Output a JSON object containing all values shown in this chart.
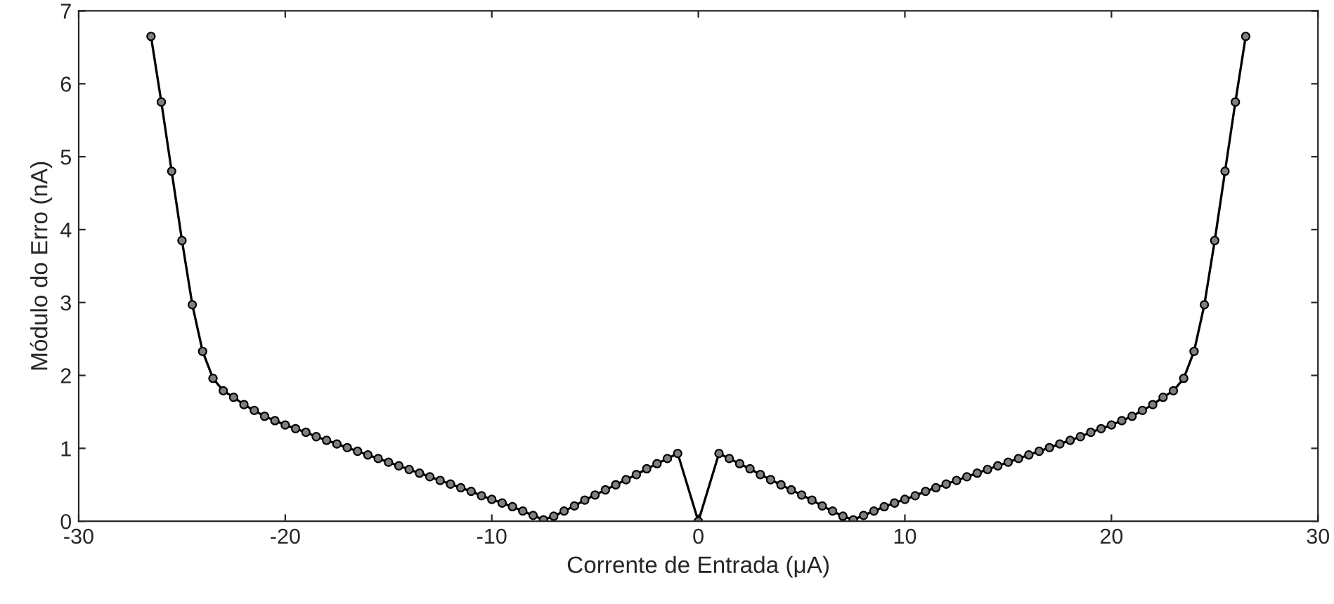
{
  "chart_data": {
    "type": "line",
    "xlabel": "Corrente de Entrada (μA)",
    "ylabel": "Módulo do Erro (nA)",
    "x": [
      -26.5,
      -26,
      -25.5,
      -25,
      -24.5,
      -24,
      -23.5,
      -23,
      -22.5,
      -22,
      -21.5,
      -21,
      -20.5,
      -20,
      -19.5,
      -19,
      -18.5,
      -18,
      -17.5,
      -17,
      -16.5,
      -16,
      -15.5,
      -15,
      -14.5,
      -14,
      -13.5,
      -13,
      -12.5,
      -12,
      -11.5,
      -11,
      -10.5,
      -10,
      -9.5,
      -9,
      -8.5,
      -8,
      -7.5,
      -7,
      -6.5,
      -6,
      -5.5,
      -5,
      -4.5,
      -4,
      -3.5,
      -3,
      -2.5,
      -2,
      -1.5,
      -1,
      0,
      1,
      1.5,
      2,
      2.5,
      3,
      3.5,
      4,
      4.5,
      5,
      5.5,
      6,
      6.5,
      7,
      7.5,
      8,
      8.5,
      9,
      9.5,
      10,
      10.5,
      11,
      11.5,
      12,
      12.5,
      13,
      13.5,
      14,
      14.5,
      15,
      15.5,
      16,
      16.5,
      17,
      17.5,
      18,
      18.5,
      19,
      19.5,
      20,
      20.5,
      21,
      21.5,
      22,
      22.5,
      23,
      23.5,
      24,
      24.5,
      25,
      25.5,
      26,
      26.5
    ],
    "series": [
      {
        "color": "#000000",
        "values": [
          6.65,
          5.75,
          4.8,
          3.85,
          2.97,
          2.33,
          1.96,
          1.79,
          1.7,
          1.6,
          1.52,
          1.44,
          1.38,
          1.32,
          1.27,
          1.22,
          1.16,
          1.11,
          1.06,
          1.01,
          0.96,
          0.91,
          0.86,
          0.81,
          0.76,
          0.71,
          0.66,
          0.61,
          0.56,
          0.51,
          0.46,
          0.41,
          0.35,
          0.3,
          0.25,
          0.2,
          0.14,
          0.08,
          0.02,
          0.07,
          0.14,
          0.21,
          0.29,
          0.36,
          0.43,
          0.5,
          0.57,
          0.64,
          0.72,
          0.79,
          0.86,
          0.93,
          0.0,
          0.93,
          0.86,
          0.79,
          0.72,
          0.64,
          0.57,
          0.5,
          0.43,
          0.36,
          0.29,
          0.21,
          0.14,
          0.07,
          0.02,
          0.08,
          0.14,
          0.2,
          0.25,
          0.3,
          0.35,
          0.41,
          0.46,
          0.51,
          0.56,
          0.61,
          0.66,
          0.71,
          0.76,
          0.81,
          0.86,
          0.91,
          0.96,
          1.01,
          1.06,
          1.11,
          1.16,
          1.22,
          1.27,
          1.32,
          1.38,
          1.44,
          1.52,
          1.6,
          1.7,
          1.79,
          1.96,
          2.33,
          2.97,
          3.85,
          4.8,
          5.75,
          6.65
        ]
      }
    ],
    "marker": "circle",
    "line_style": "solid",
    "xlim": [
      -30,
      30
    ],
    "xticks": [
      -30,
      -20,
      -10,
      0,
      10,
      20,
      30
    ],
    "ylim": [
      0,
      7
    ],
    "yticks": [
      0,
      1,
      2,
      3,
      4,
      5,
      6,
      7
    ],
    "grid": false,
    "legend": false
  }
}
